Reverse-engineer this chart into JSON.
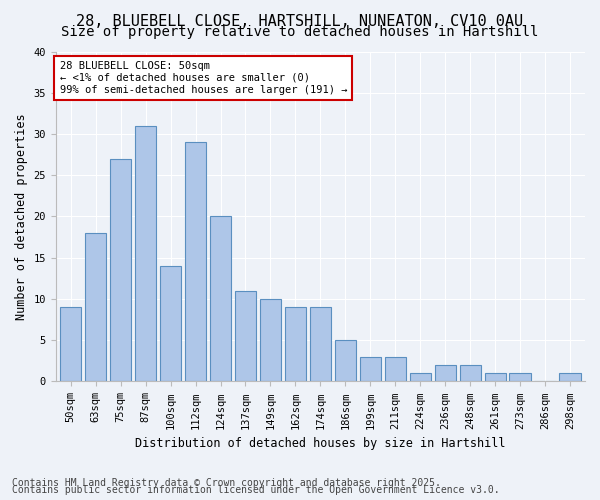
{
  "title1": "28, BLUEBELL CLOSE, HARTSHILL, NUNEATON, CV10 0AU",
  "title2": "Size of property relative to detached houses in Hartshill",
  "xlabel": "Distribution of detached houses by size in Hartshill",
  "ylabel": "Number of detached properties",
  "categories": [
    "50sqm",
    "63sqm",
    "75sqm",
    "87sqm",
    "100sqm",
    "112sqm",
    "124sqm",
    "137sqm",
    "149sqm",
    "162sqm",
    "174sqm",
    "186sqm",
    "199sqm",
    "211sqm",
    "224sqm",
    "236sqm",
    "248sqm",
    "261sqm",
    "273sqm",
    "286sqm",
    "298sqm"
  ],
  "values": [
    9,
    18,
    27,
    31,
    14,
    29,
    20,
    11,
    10,
    9,
    9,
    5,
    3,
    3,
    1,
    2,
    2,
    1,
    1,
    0,
    1
  ],
  "bar_color": "#aec6e8",
  "bar_edge_color": "#5a8fc0",
  "background_color": "#eef2f8",
  "grid_color": "#ffffff",
  "annotation_text": "28 BLUEBELL CLOSE: 50sqm\n← <1% of detached houses are smaller (0)\n99% of semi-detached houses are larger (191) →",
  "annotation_box_color": "#ffffff",
  "annotation_box_edge": "#cc0000",
  "footer1": "Contains HM Land Registry data © Crown copyright and database right 2025.",
  "footer2": "Contains public sector information licensed under the Open Government Licence v3.0.",
  "ylim_max": 40,
  "yticks": [
    0,
    5,
    10,
    15,
    20,
    25,
    30,
    35,
    40
  ],
  "title_fontsize": 11,
  "subtitle_fontsize": 10,
  "axis_fontsize": 8.5,
  "tick_fontsize": 7.5,
  "footer_fontsize": 7
}
